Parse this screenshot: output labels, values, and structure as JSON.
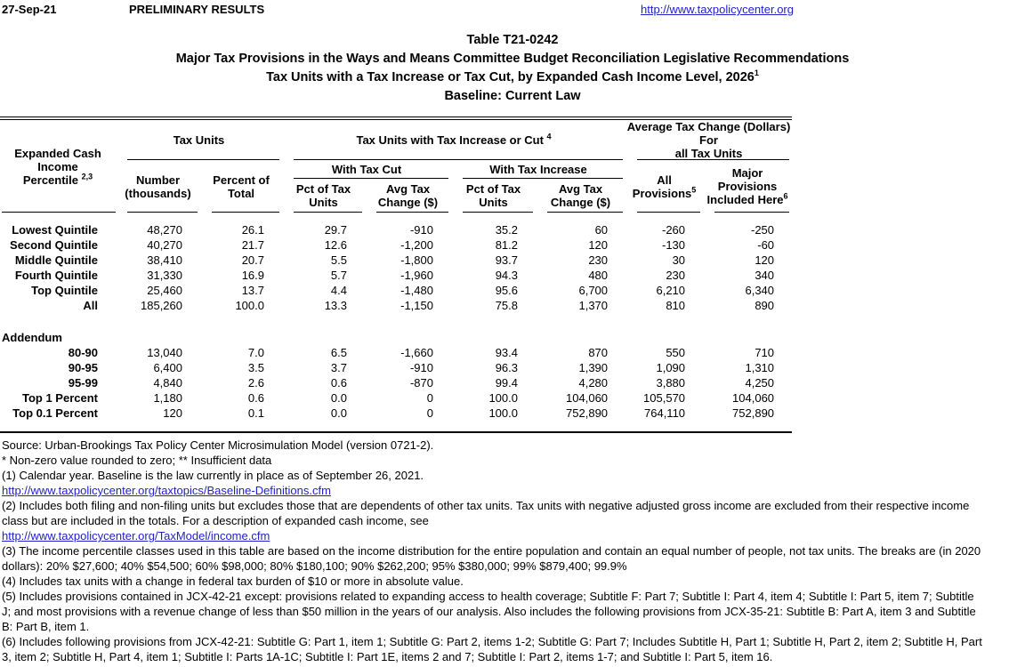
{
  "colors": {
    "text": "#000000",
    "link": "#2222cc"
  },
  "page_header": {
    "date": "27-Sep-21",
    "status": "PRELIMINARY RESULTS",
    "url": "http://www.taxpolicycenter.org"
  },
  "title": {
    "line1": "Table T21-0242",
    "line2": "Major Tax Provisions in the Ways and Means Committee Budget Reconciliation Legislative Recommendations",
    "line3": "Tax Units with a Tax Increase or Tax Cut, by Expanded Cash Income Level, 2026",
    "line3_superscript": "1",
    "line4": "Baseline: Current Law"
  },
  "table": {
    "header": {
      "stub_line1": "Expanded Cash Income",
      "stub_line2": "Percentile ",
      "stub_superscript": "2,3",
      "group_tax_units": "Tax Units",
      "group_increase_or_cut": "Tax Units with Tax Increase or Cut ",
      "group_increase_or_cut_superscript": "4",
      "group_avg_change_line1": "Average Tax Change (Dollars) For",
      "group_avg_change_line2": "all Tax Units",
      "sub_with_cut": "With Tax Cut",
      "sub_with_increase": "With Tax Increase",
      "col_number_line1": "Number",
      "col_number_line2": "(thousands)",
      "col_pct_total_line1": "Percent of",
      "col_pct_total_line2": "Total",
      "col_pct_units_line1": "Pct of Tax",
      "col_pct_units_line2": "Units",
      "col_avg_change_line1": "Avg Tax",
      "col_avg_change_line2": "Change ($)",
      "col_all_provisions": "All Provisions",
      "col_all_provisions_superscript": "5",
      "col_major_line1": "Major",
      "col_major_line2": "Provisions",
      "col_major_line3": "Included Here",
      "col_major_superscript": "6"
    },
    "rows": [
      {
        "label": "Lowest Quintile",
        "cells": [
          "48,270",
          "26.1",
          "29.7",
          "-910",
          "35.2",
          "60",
          "-260",
          "-250"
        ]
      },
      {
        "label": "Second Quintile",
        "cells": [
          "40,270",
          "21.7",
          "12.6",
          "-1,200",
          "81.2",
          "120",
          "-130",
          "-60"
        ]
      },
      {
        "label": "Middle Quintile",
        "cells": [
          "38,410",
          "20.7",
          "5.5",
          "-1,800",
          "93.7",
          "230",
          "30",
          "120"
        ]
      },
      {
        "label": "Fourth Quintile",
        "cells": [
          "31,330",
          "16.9",
          "5.7",
          "-1,960",
          "94.3",
          "480",
          "230",
          "340"
        ]
      },
      {
        "label": "Top Quintile",
        "cells": [
          "25,460",
          "13.7",
          "4.4",
          "-1,480",
          "95.6",
          "6,700",
          "6,210",
          "6,340"
        ]
      },
      {
        "label": "All",
        "cells": [
          "185,260",
          "100.0",
          "13.3",
          "-1,150",
          "75.8",
          "1,370",
          "810",
          "890"
        ]
      }
    ],
    "addendum_label": "Addendum",
    "addendum_rows": [
      {
        "label": "80-90",
        "cells": [
          "13,040",
          "7.0",
          "6.5",
          "-1,660",
          "93.4",
          "870",
          "550",
          "710"
        ]
      },
      {
        "label": "90-95",
        "cells": [
          "6,400",
          "3.5",
          "3.7",
          "-910",
          "96.3",
          "1,390",
          "1,090",
          "1,310"
        ]
      },
      {
        "label": "95-99",
        "cells": [
          "4,840",
          "2.6",
          "0.6",
          "-870",
          "99.4",
          "4,280",
          "3,880",
          "4,250"
        ]
      },
      {
        "label": "Top 1 Percent",
        "cells": [
          "1,180",
          "0.6",
          "0.0",
          "0",
          "100.0",
          "104,060",
          "105,570",
          "104,060"
        ]
      },
      {
        "label": "Top 0.1 Percent",
        "cells": [
          "120",
          "0.1",
          "0.0",
          "0",
          "100.0",
          "752,890",
          "764,110",
          "752,890"
        ]
      }
    ]
  },
  "footnotes": [
    {
      "type": "text",
      "text": "Source: Urban-Brookings Tax Policy Center Microsimulation Model (version 0721-2)."
    },
    {
      "type": "text",
      "text": "* Non-zero value rounded to zero; ** Insufficient data"
    },
    {
      "type": "text",
      "text": "(1) Calendar year. Baseline is the law currently in place as of September 26, 2021."
    },
    {
      "type": "link",
      "text": "http://www.taxpolicycenter.org/taxtopics/Baseline-Definitions.cfm"
    },
    {
      "type": "text",
      "text": "(2) Includes both filing and non-filing units but excludes those that are dependents of other tax units. Tax units with negative adjusted gross income are excluded from their respective income class but are included in the totals. For a description of expanded cash income, see"
    },
    {
      "type": "link",
      "text": "http://www.taxpolicycenter.org/TaxModel/income.cfm"
    },
    {
      "type": "text",
      "text": "(3) The income percentile classes used in this table are based on the income distribution for the entire population and contain an equal number of people, not tax units. The breaks are (in 2020 dollars): 20% $27,600; 40% $54,500; 60% $98,000; 80% $180,100; 90% $262,200; 95% $380,000; 99% $879,400; 99.9%"
    },
    {
      "type": "text",
      "text": "(4) Includes tax units with a change in federal tax burden of $10 or more in absolute value."
    },
    {
      "type": "text",
      "text": "(5) Includes provisions contained in JCX-42-21 except: provisions related to expanding access to health coverage; Subtitle F: Part 7; Subtitle I: Part 4, item 4; Subtitle I: Part 5, item 7; Subtitle J; and most provisions with a revenue change of less than $50 million in the years of our analysis. Also includes the following provisions from JCX-35-21: Subtitle B: Part A, item 3 and Subtitle B: Part B, item 1."
    },
    {
      "type": "text",
      "text": "(6) Includes following provisions from JCX-42-21: Subtitle G: Part 1, item 1;  Subtitle G: Part 2, items 1-2; Subtitle G: Part 7; Includes Subtitle H, Part 1; Subtitle H, Part 2, item 2; Subtitle H, Part 3, item 2; Subtitle H, Part 4, item 1; Subtitle I: Parts 1A-1C; Subtitle I: Part 1E, items 2 and 7; Subtitle I: Part 2, items 1-7; and Subtitle I: Part 5, item 16."
    }
  ]
}
